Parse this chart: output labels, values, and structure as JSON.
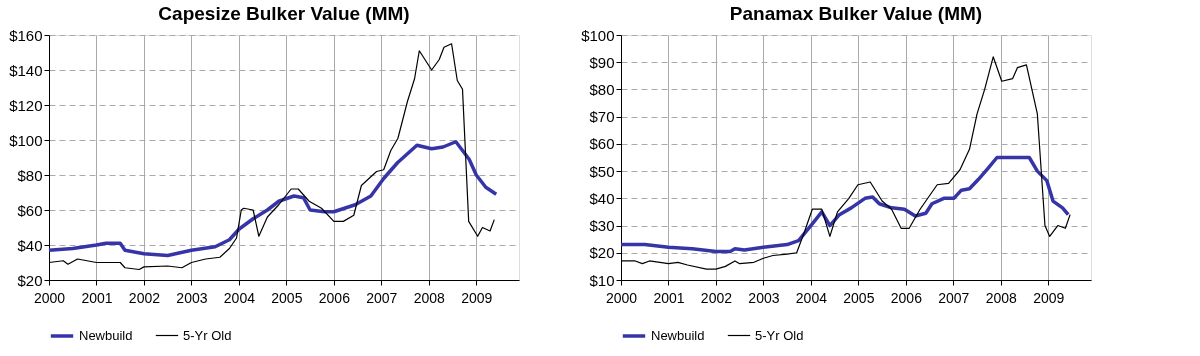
{
  "chart_data": [
    {
      "type": "line",
      "title": "Capesize Bulker Value (MM)",
      "xlim": [
        2000,
        2009.9
      ],
      "xticks": [
        2000,
        2001,
        2002,
        2003,
        2004,
        2005,
        2006,
        2007,
        2008,
        2009
      ],
      "ylim": [
        20,
        160
      ],
      "yticks": [
        {
          "value": 20,
          "label": "$20"
        },
        {
          "value": 40,
          "label": "$40"
        },
        {
          "value": 60,
          "label": "$60"
        },
        {
          "value": 80,
          "label": "$80"
        },
        {
          "value": 100,
          "label": "$100"
        },
        {
          "value": 120,
          "label": "$120"
        },
        {
          "value": 140,
          "label": "$140"
        },
        {
          "value": 160,
          "label": "$160"
        }
      ],
      "grid": true,
      "legend": "bottom",
      "series": [
        {
          "name": "Newbuild",
          "color": "#3535a8",
          "x": [
            2000,
            2000.5,
            2001,
            2001.2,
            2001.5,
            2001.6,
            2002,
            2002.5,
            2003,
            2003.5,
            2003.8,
            2004,
            2004.3,
            2004.6,
            2004.84,
            2005.16,
            2005.36,
            2005.5,
            2005.8,
            2006,
            2006.45,
            2006.78,
            2007.05,
            2007.34,
            2007.75,
            2008.06,
            2008.3,
            2008.57,
            2008.85,
            2009.0,
            2009.2,
            2009.42
          ],
          "values": [
            37,
            38,
            40,
            41,
            41,
            37,
            35,
            34,
            37,
            39,
            43,
            49,
            55,
            60,
            65,
            68,
            67,
            60,
            59,
            59,
            63,
            68,
            78,
            87,
            97,
            95,
            96,
            99,
            89,
            80,
            73,
            69
          ]
        },
        {
          "name": "5-Yr Old",
          "color": "#000000",
          "x": [
            2000,
            2000.3,
            2000.4,
            2000.6,
            2001,
            2001.5,
            2001.6,
            2001.9,
            2002,
            2002.5,
            2002.8,
            2003,
            2003.3,
            2003.6,
            2003.8,
            2003.95,
            2004.05,
            2004.1,
            2004.3,
            2004.42,
            2004.6,
            2004.84,
            2005.1,
            2005.25,
            2005.48,
            2005.74,
            2006,
            2006.2,
            2006.42,
            2006.58,
            2006.9,
            2007.05,
            2007.2,
            2007.35,
            2007.55,
            2007.7,
            2007.8,
            2008.06,
            2008.22,
            2008.32,
            2008.48,
            2008.6,
            2008.71,
            2008.84,
            2009.03,
            2009.13,
            2009.29,
            2009.38
          ],
          "values": [
            30,
            31,
            29,
            32,
            30,
            30,
            27,
            26,
            27.5,
            28,
            27,
            30,
            32,
            33,
            38,
            44,
            60,
            61,
            60,
            45,
            56,
            63,
            72,
            72,
            65,
            61,
            53.5,
            53.5,
            57,
            74,
            82,
            83,
            94,
            101,
            122,
            135,
            151,
            140,
            146,
            153,
            155,
            134,
            129,
            53.5,
            45,
            50,
            48,
            54.5
          ]
        }
      ]
    },
    {
      "type": "line",
      "title": "Panamax Bulker Value (MM)",
      "xlim": [
        2000,
        2009.9
      ],
      "xticks": [
        2000,
        2001,
        2002,
        2003,
        2004,
        2005,
        2006,
        2007,
        2008,
        2009
      ],
      "ylim": [
        10,
        100
      ],
      "yticks": [
        {
          "value": 10,
          "label": "$10"
        },
        {
          "value": 20,
          "label": "$20"
        },
        {
          "value": 30,
          "label": "$30"
        },
        {
          "value": 40,
          "label": "$40"
        },
        {
          "value": 50,
          "label": "$50"
        },
        {
          "value": 60,
          "label": "$60"
        },
        {
          "value": 70,
          "label": "$70"
        },
        {
          "value": 80,
          "label": "$80"
        },
        {
          "value": 90,
          "label": "$90"
        },
        {
          "value": 100,
          "label": "$100"
        }
      ],
      "grid": true,
      "legend": "bottom",
      "series": [
        {
          "name": "Newbuild",
          "color": "#3535a8",
          "x": [
            2000,
            2000.5,
            2001,
            2001.5,
            2002,
            2002.3,
            2002.4,
            2002.6,
            2003,
            2003.5,
            2003.74,
            2004,
            2004.23,
            2004.4,
            2004.6,
            2004.85,
            2005.14,
            2005.3,
            2005.44,
            2005.7,
            2005.97,
            2006.2,
            2006.42,
            2006.55,
            2006.8,
            2007.01,
            2007.17,
            2007.34,
            2007.53,
            2007.73,
            2007.92,
            2008.6,
            2008.77,
            2008.97,
            2009.1,
            2009.3,
            2009.42
          ],
          "values": [
            23,
            23,
            22,
            21.5,
            20.5,
            20.5,
            21.5,
            21,
            22,
            23,
            24.5,
            30,
            35,
            30,
            34,
            36.5,
            40,
            40.5,
            38,
            36.5,
            36,
            33.5,
            34.5,
            38,
            40,
            40,
            43,
            43.5,
            47,
            51,
            55,
            55,
            50,
            46.5,
            39,
            36.5,
            34
          ]
        },
        {
          "name": "5-Yr Old",
          "color": "#000000",
          "x": [
            2000,
            2000.3,
            2000.45,
            2000.6,
            2001,
            2001.2,
            2001.4,
            2001.8,
            2002,
            2002.2,
            2002.4,
            2002.5,
            2002.8,
            2003,
            2003.2,
            2003.5,
            2003.7,
            2003.85,
            2004.03,
            2004.23,
            2004.4,
            2004.56,
            2004.8,
            2004.99,
            2005.25,
            2005.5,
            2005.7,
            2005.9,
            2006.07,
            2006.3,
            2006.66,
            2006.9,
            2007.14,
            2007.34,
            2007.5,
            2007.66,
            2007.84,
            2008.02,
            2008.25,
            2008.35,
            2008.54,
            2008.77,
            2008.93,
            2009.03,
            2009.2,
            2009.36,
            2009.46
          ],
          "values": [
            17,
            17,
            16,
            17,
            16,
            16.5,
            15.5,
            14,
            14,
            15,
            17,
            16,
            16.5,
            18,
            19,
            19.5,
            20,
            27,
            36,
            36,
            26,
            35,
            40,
            45,
            46,
            39,
            36,
            29,
            29,
            36,
            45,
            45.5,
            50.5,
            58,
            71,
            80,
            92,
            83,
            84,
            88,
            89,
            71,
            30,
            26,
            30,
            29,
            34
          ]
        }
      ]
    }
  ]
}
